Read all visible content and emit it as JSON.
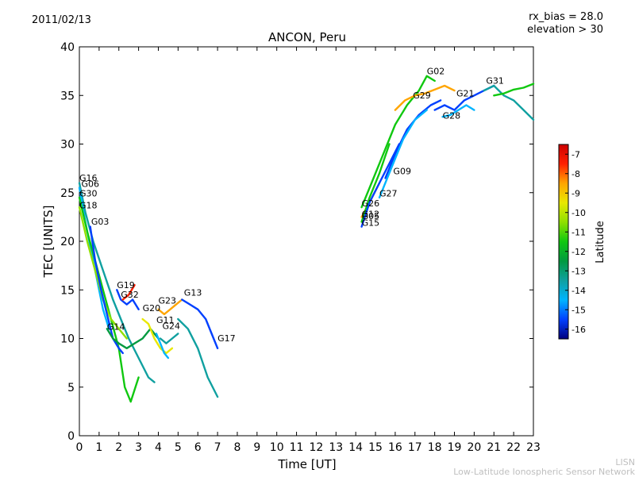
{
  "header": {
    "date": "2011/02/13",
    "rx_bias": "rx_bias = 28.0",
    "elevation": "elevation > 30"
  },
  "footer": {
    "org_short": "LISN",
    "org_full": "Low-Latitude Ionospheric Sensor Network"
  },
  "chart_data": {
    "type": "line",
    "title": "ANCON, Peru",
    "xlabel": "Time [UT]",
    "ylabel": "TEC [UNITS]",
    "xlim": [
      0,
      23
    ],
    "ylim": [
      0,
      40
    ],
    "xticks": [
      0,
      1,
      2,
      3,
      4,
      5,
      6,
      7,
      8,
      9,
      10,
      11,
      12,
      13,
      14,
      15,
      16,
      17,
      18,
      19,
      20,
      21,
      22,
      23
    ],
    "yticks": [
      0,
      5,
      10,
      15,
      20,
      25,
      30,
      35,
      40
    ],
    "colorbar": {
      "label": "Latitude",
      "min": -16.5,
      "max": -6.5,
      "ticks": [
        -7,
        -8,
        -9,
        -10,
        -11,
        -12,
        -13,
        -14,
        -15,
        -16
      ],
      "colors": [
        "#00007f",
        "#0040ff",
        "#00b4ff",
        "#10a0a0",
        "#009a40",
        "#10c810",
        "#8fe000",
        "#e8e800",
        "#ffa500",
        "#ff2000",
        "#cc0000"
      ]
    },
    "series": [
      {
        "name": "G16",
        "color": "#10a0a0",
        "x": [
          0,
          0.3,
          0.7,
          1.2,
          1.7,
          2.1,
          2.5,
          3.0,
          3.5,
          3.8
        ],
        "y": [
          26,
          23,
          20,
          17,
          14,
          12,
          10,
          8,
          6,
          5.5
        ]
      },
      {
        "name": "G06",
        "color": "#00b4ff",
        "x": [
          0,
          0.3,
          0.6,
          0.9,
          1.2,
          1.5
        ],
        "y": [
          25.5,
          22,
          19,
          16,
          13,
          11
        ]
      },
      {
        "name": "G30",
        "color": "#10c810",
        "x": [
          0,
          0.4,
          0.8,
          1.2,
          1.6,
          2.0,
          2.3,
          2.6,
          3.0
        ],
        "y": [
          24.5,
          21,
          18,
          15,
          12,
          9,
          5,
          3.5,
          6
        ]
      },
      {
        "name": "G18",
        "color": "#8fe000",
        "x": [
          0,
          0.4,
          0.8,
          1.2,
          1.6,
          2.0,
          2.4
        ],
        "y": [
          23.5,
          20,
          17,
          14,
          12,
          11,
          10
        ]
      },
      {
        "name": "G03",
        "color": "#0040ff",
        "x": [
          0.55,
          0.8,
          1.1,
          1.4,
          1.7,
          2.0,
          2.2
        ],
        "y": [
          21.5,
          18,
          15,
          12.5,
          10,
          9,
          8.5
        ]
      },
      {
        "name": "G19",
        "color": "#0040ff",
        "x": [
          1.9,
          2.1,
          2.4,
          2.7,
          3.0
        ],
        "y": [
          15,
          14,
          13.5,
          14,
          13
        ]
      },
      {
        "name": "G32",
        "color": "#ff2000",
        "x": [
          2.2,
          2.5,
          2.8
        ],
        "y": [
          14,
          14.5,
          15.5
        ]
      },
      {
        "name": "G14",
        "color": "#009a40",
        "x": [
          1.4,
          1.7,
          2.0,
          2.4,
          2.8,
          3.2,
          3.6,
          4.0
        ],
        "y": [
          11,
          10,
          9.5,
          9,
          9.5,
          10,
          11,
          10
        ]
      },
      {
        "name": "G20",
        "color": "#e8e800",
        "x": [
          3.2,
          3.5,
          3.8,
          4.1,
          4.4,
          4.7
        ],
        "y": [
          12,
          11.5,
          10,
          9,
          8.5,
          9
        ]
      },
      {
        "name": "G23",
        "color": "#ffa500",
        "x": [
          4.0,
          4.3,
          4.6,
          4.9,
          5.2
        ],
        "y": [
          13,
          12.5,
          13,
          13.5,
          14
        ]
      },
      {
        "name": "G11",
        "color": "#00b4ff",
        "x": [
          3.9,
          4.1,
          4.3,
          4.5
        ],
        "y": [
          10.5,
          9.5,
          8.5,
          8
        ]
      },
      {
        "name": "G24",
        "color": "#10a0a0",
        "x": [
          4.1,
          4.4,
          4.7,
          5.0
        ],
        "y": [
          10,
          9.5,
          10,
          10.5
        ]
      },
      {
        "name": "G13",
        "color": "#0040ff",
        "x": [
          5.2,
          5.6,
          6.0,
          6.4,
          6.8,
          7.0
        ],
        "y": [
          14,
          13.5,
          13,
          12,
          10,
          9
        ]
      },
      {
        "name": "G17",
        "color": "#10a0a0",
        "x": [
          5.0,
          5.5,
          6.0,
          6.5,
          7.0
        ],
        "y": [
          12,
          11,
          9,
          6,
          4
        ]
      },
      {
        "name": "G02",
        "color": "#10c810",
        "x": [
          14.3,
          14.8,
          15.4,
          16.0,
          16.6,
          17.2,
          17.6,
          18.0
        ],
        "y": [
          23.5,
          26,
          29,
          32,
          34,
          35.5,
          37,
          36.5
        ]
      },
      {
        "name": "G29",
        "color": "#ffa500",
        "x": [
          16.0,
          16.5,
          17.0,
          17.5,
          18.0,
          18.5,
          19.0
        ],
        "y": [
          33.5,
          34.5,
          35,
          35.2,
          35.6,
          36,
          35.5
        ]
      },
      {
        "name": "G21",
        "color": "#0040ff",
        "x": [
          18.0,
          18.5,
          19.0,
          19.5,
          20.0,
          20.5,
          21.0
        ],
        "y": [
          33.5,
          34,
          33.5,
          34.5,
          35,
          35.5,
          36
        ]
      },
      {
        "name": "G28",
        "color": "#00b4ff",
        "x": [
          18.4,
          18.8,
          19.2,
          19.6,
          20.0
        ],
        "y": [
          32.8,
          33,
          33.5,
          34,
          33.5
        ]
      },
      {
        "name": "G31",
        "color": "#10a0a0",
        "x": [
          20.5,
          21.0,
          21.5,
          22.0,
          22.5,
          23.0
        ],
        "y": [
          35.5,
          36,
          35,
          34.5,
          33.5,
          32.5
        ]
      },
      {
        "name": "G09",
        "color": "#0040ff",
        "x": [
          15.5,
          16.0,
          16.6,
          17.2,
          17.8,
          18.3
        ],
        "y": [
          26.5,
          29,
          31.5,
          33,
          34,
          34.5
        ]
      },
      {
        "name": "G27",
        "color": "#00b4ff",
        "x": [
          15.2,
          15.8,
          16.4,
          17.0,
          17.6
        ],
        "y": [
          24.5,
          27.5,
          30.5,
          32.5,
          33.5
        ]
      },
      {
        "name": "G26",
        "color": "#ffa500",
        "x": [
          14.3,
          14.7,
          15.2
        ],
        "y": [
          22.5,
          24,
          26
        ]
      },
      {
        "name": "G12",
        "color": "#10c810",
        "x": [
          14.3,
          14.7,
          15.2,
          15.7
        ],
        "y": [
          22,
          24.5,
          27,
          30
        ]
      },
      {
        "name": "G15",
        "color": "#0040ff",
        "x": [
          14.3,
          14.7,
          15.2,
          15.7,
          16.2
        ],
        "y": [
          21.5,
          24,
          26,
          28,
          30
        ]
      },
      {
        "name": "G05",
        "color": "#10c810",
        "x": [
          21.0,
          21.5,
          22.0,
          22.5,
          23.0
        ],
        "y": [
          35,
          35.2,
          35.6,
          35.8,
          36.2
        ]
      }
    ],
    "annotations": [
      {
        "text": "G16",
        "x": 0,
        "y": 26.2
      },
      {
        "text": "G06",
        "x": 0.1,
        "y": 25.6
      },
      {
        "text": "G30",
        "x": 0,
        "y": 24.6
      },
      {
        "text": "G18",
        "x": 0,
        "y": 23.4
      },
      {
        "text": "G03",
        "x": 0.6,
        "y": 21.7
      },
      {
        "text": "G19",
        "x": 1.9,
        "y": 15.2
      },
      {
        "text": "G32",
        "x": 2.1,
        "y": 14.2
      },
      {
        "text": "G14",
        "x": 1.4,
        "y": 10.9
      },
      {
        "text": "G20",
        "x": 3.2,
        "y": 12.8
      },
      {
        "text": "G23",
        "x": 4.0,
        "y": 13.6
      },
      {
        "text": "G11",
        "x": 3.9,
        "y": 11.6
      },
      {
        "text": "G24",
        "x": 4.2,
        "y": 11.0
      },
      {
        "text": "G13",
        "x": 5.3,
        "y": 14.4
      },
      {
        "text": "G17",
        "x": 7.0,
        "y": 9.7
      },
      {
        "text": "G02",
        "x": 17.6,
        "y": 37.2
      },
      {
        "text": "G29",
        "x": 16.9,
        "y": 34.7
      },
      {
        "text": "G21",
        "x": 19.1,
        "y": 34.9
      },
      {
        "text": "G28",
        "x": 18.4,
        "y": 32.6
      },
      {
        "text": "G31",
        "x": 20.6,
        "y": 36.2
      },
      {
        "text": "G09",
        "x": 15.9,
        "y": 26.9
      },
      {
        "text": "G27",
        "x": 15.2,
        "y": 24.6
      },
      {
        "text": "G26",
        "x": 14.3,
        "y": 23.6
      },
      {
        "text": "G12",
        "x": 14.3,
        "y": 22.5
      },
      {
        "text": "G05",
        "x": 14.3,
        "y": 22.3
      },
      {
        "text": "G15",
        "x": 14.3,
        "y": 21.6
      }
    ]
  }
}
